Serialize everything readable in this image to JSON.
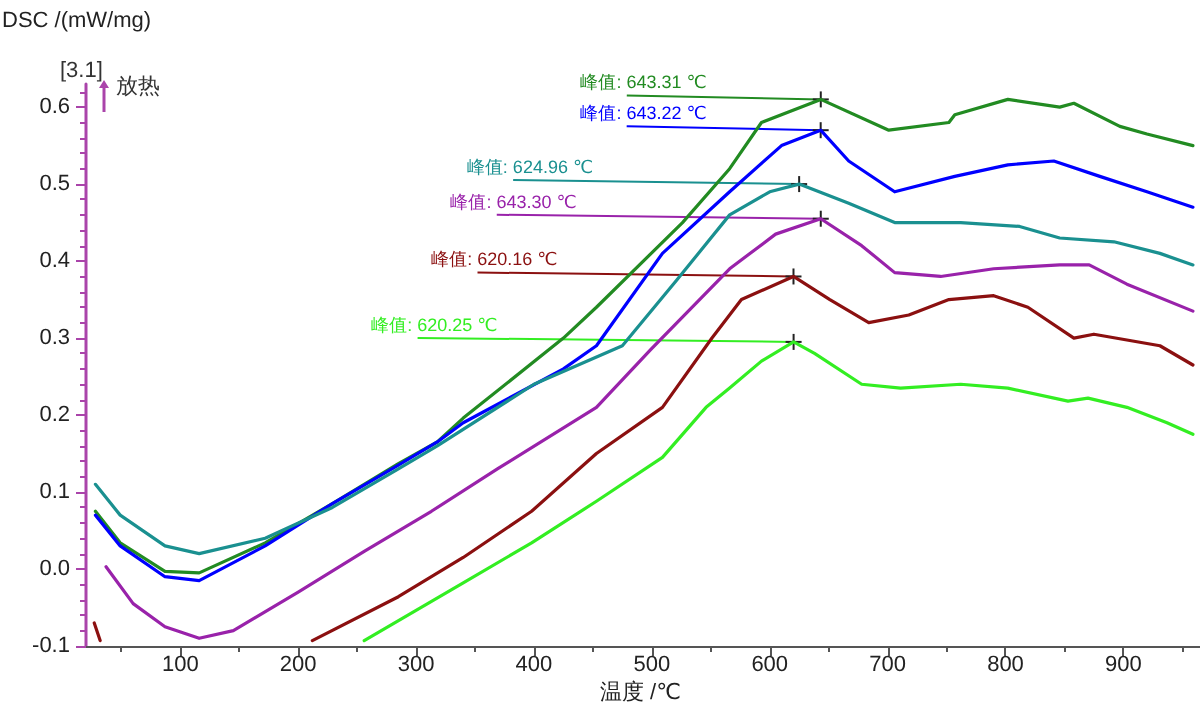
{
  "chart_data": {
    "type": "line",
    "xlabel": "温度 /℃",
    "ylabel": "DSC /(mW/mg)",
    "xlim": [
      20,
      965
    ],
    "ylim": [
      -0.1,
      0.63
    ],
    "xticks": [
      100,
      200,
      300,
      400,
      500,
      600,
      700,
      800,
      900
    ],
    "yticks": [
      -0.1,
      {
        "value": 0,
        "label": "0.0"
      },
      0.1,
      0.2,
      0.3,
      0.4,
      0.5,
      0.6
    ],
    "marker": "none",
    "annotations": [
      {
        "text": "峰值: 643.31 ℃",
        "x": 643.31,
        "y": 0.61
      },
      {
        "text": "峰值: 643.22 ℃",
        "x": 643.22,
        "y": 0.57
      },
      {
        "text": "峰值: 624.96 ℃",
        "x": 624.96,
        "y": 0.5
      },
      {
        "text": "峰值: 643.30 ℃",
        "x": 643.3,
        "y": 0.455
      },
      {
        "text": "峰值: 620.16 ℃",
        "x": 620.16,
        "y": 0.38
      },
      {
        "text": "峰值: 620.25 ℃",
        "x": 620.25,
        "y": 0.295
      },
      "[3.1]",
      "放热"
    ],
    "series": [
      {
        "color": "#228b22",
        "x": [
          28,
          49,
          87,
          116,
          172,
          229,
          285,
          318,
          340,
          425,
          453,
          526,
          566,
          593,
          643.31,
          701,
          752,
          757,
          802,
          846,
          858,
          897,
          920,
          959
        ],
        "values": [
          0.075,
          0.034,
          -0.003,
          -0.005,
          0.034,
          0.085,
          0.137,
          0.165,
          0.196,
          0.3,
          0.34,
          0.45,
          0.52,
          0.58,
          0.61,
          0.57,
          0.58,
          0.59,
          0.61,
          0.6,
          0.605,
          0.575,
          0.565,
          0.55
        ]
      },
      {
        "color": "#0000ff",
        "x": [
          28,
          49,
          87,
          116,
          172,
          229,
          285,
          318,
          340,
          425,
          453,
          509,
          566,
          610,
          643.22,
          667,
          706,
          757,
          802,
          841,
          880,
          920,
          959
        ],
        "values": [
          0.07,
          0.03,
          -0.01,
          -0.015,
          0.03,
          0.085,
          0.135,
          0.165,
          0.19,
          0.26,
          0.29,
          0.41,
          0.49,
          0.55,
          0.57,
          0.53,
          0.49,
          0.51,
          0.525,
          0.53,
          0.51,
          0.49,
          0.47
        ]
      },
      {
        "color": "#1a9090",
        "x": [
          28,
          49,
          87,
          116,
          172,
          229,
          285,
          318,
          400,
          475,
          521,
          566,
          600,
          624.96,
          667,
          706,
          762,
          812,
          846,
          892,
          931,
          959
        ],
        "values": [
          0.11,
          0.07,
          0.03,
          0.02,
          0.04,
          0.08,
          0.13,
          0.16,
          0.24,
          0.29,
          0.375,
          0.46,
          0.49,
          0.5,
          0.475,
          0.45,
          0.45,
          0.445,
          0.43,
          0.425,
          0.41,
          0.395
        ]
      },
      {
        "color": "#9922aa",
        "x": [
          37,
          60,
          87,
          116,
          145,
          200,
          256,
          313,
          369,
          453,
          499,
          566,
          605,
          643.3,
          678,
          706,
          745,
          790,
          846,
          871,
          903,
          959
        ],
        "values": [
          0.003,
          -0.045,
          -0.075,
          -0.09,
          -0.08,
          -0.03,
          0.023,
          0.075,
          0.13,
          0.21,
          0.285,
          0.39,
          0.435,
          0.455,
          0.42,
          0.385,
          0.38,
          0.39,
          0.395,
          0.395,
          0.37,
          0.335
        ]
      },
      {
        "color": "#8b1010",
        "x": [
          27,
          32,
          120,
          212,
          285,
          340,
          398,
          453,
          509,
          551,
          576,
          620.16,
          651,
          684,
          718,
          752,
          790,
          819,
          858,
          875,
          931,
          959
        ],
        "values": [
          -0.07,
          -0.093,
          null,
          -0.093,
          -0.036,
          0.015,
          0.075,
          0.15,
          0.21,
          0.3,
          0.35,
          0.38,
          0.35,
          0.32,
          0.33,
          0.35,
          0.355,
          0.34,
          0.3,
          0.305,
          0.29,
          0.265
        ]
      },
      {
        "color": "#33ee22",
        "x": [
          256,
          340,
          398,
          453,
          509,
          546,
          566,
          593,
          620.25,
          638,
          678,
          711,
          762,
          802,
          853,
          870,
          903,
          937,
          959
        ],
        "values": [
          -0.093,
          -0.018,
          0.034,
          0.088,
          0.145,
          0.21,
          0.235,
          0.27,
          0.295,
          0.28,
          0.24,
          0.235,
          0.24,
          0.235,
          0.218,
          0.222,
          0.21,
          0.19,
          0.175
        ]
      }
    ]
  }
}
